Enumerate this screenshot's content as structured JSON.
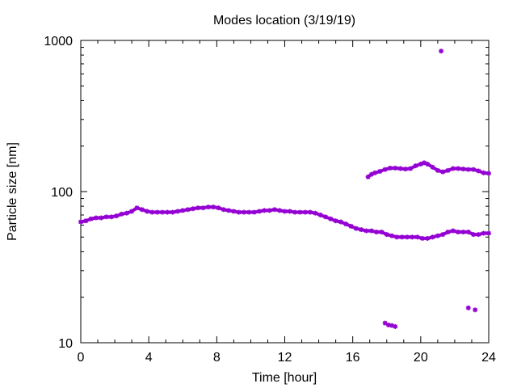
{
  "chart_data": {
    "type": "scatter",
    "title": "Modes location (3/19/19)",
    "xlabel": "Time [hour]",
    "ylabel": "Particle size [nm]",
    "xlim": [
      0,
      24
    ],
    "ylim": [
      10,
      1000
    ],
    "y_scale": "log",
    "x_ticks": [
      "0",
      "4",
      "8",
      "12",
      "16",
      "20",
      "24"
    ],
    "y_ticks": [
      "10",
      "100",
      "1000"
    ],
    "marker_color": "#9400d3",
    "grid": false,
    "legend": "none",
    "series": [
      {
        "points": [
          [
            0.0,
            63
          ],
          [
            0.3,
            64
          ],
          [
            0.6,
            66
          ],
          [
            0.9,
            67
          ],
          [
            1.2,
            67
          ],
          [
            1.5,
            68
          ],
          [
            1.8,
            68
          ],
          [
            2.1,
            69
          ],
          [
            2.4,
            71
          ],
          [
            2.7,
            72
          ],
          [
            3.0,
            74
          ],
          [
            3.3,
            78
          ],
          [
            3.6,
            76
          ],
          [
            3.9,
            74
          ],
          [
            4.2,
            73
          ],
          [
            4.5,
            73
          ],
          [
            4.8,
            73
          ],
          [
            5.1,
            73
          ],
          [
            5.4,
            73
          ],
          [
            5.7,
            74
          ],
          [
            6.0,
            75
          ],
          [
            6.3,
            76
          ],
          [
            6.6,
            77
          ],
          [
            6.9,
            78
          ],
          [
            7.2,
            78
          ],
          [
            7.5,
            79
          ],
          [
            7.8,
            79
          ],
          [
            8.1,
            78
          ],
          [
            8.4,
            76
          ],
          [
            8.7,
            75
          ],
          [
            9.0,
            74
          ],
          [
            9.3,
            73
          ],
          [
            9.6,
            73
          ],
          [
            9.9,
            73
          ],
          [
            10.2,
            73
          ],
          [
            10.5,
            74
          ],
          [
            10.8,
            75
          ],
          [
            11.1,
            75
          ],
          [
            11.4,
            76
          ],
          [
            11.7,
            75
          ],
          [
            12.0,
            74
          ],
          [
            12.3,
            74
          ],
          [
            12.6,
            73
          ],
          [
            12.9,
            73
          ],
          [
            13.2,
            73
          ],
          [
            13.5,
            73
          ],
          [
            13.8,
            72
          ],
          [
            14.1,
            70
          ],
          [
            14.4,
            68
          ],
          [
            14.7,
            66
          ],
          [
            15.0,
            64
          ],
          [
            15.3,
            63
          ],
          [
            15.6,
            61
          ],
          [
            15.9,
            59
          ],
          [
            16.2,
            57
          ],
          [
            16.5,
            56
          ],
          [
            16.8,
            55
          ],
          [
            17.1,
            55
          ],
          [
            17.4,
            54
          ],
          [
            17.7,
            54
          ],
          [
            18.0,
            52
          ],
          [
            18.3,
            51
          ],
          [
            18.6,
            50
          ],
          [
            18.9,
            50
          ],
          [
            19.2,
            50
          ],
          [
            19.5,
            50
          ],
          [
            19.8,
            50
          ],
          [
            20.1,
            49
          ],
          [
            20.4,
            49
          ],
          [
            20.7,
            50
          ],
          [
            21.0,
            51
          ],
          [
            21.3,
            52
          ],
          [
            21.6,
            54
          ],
          [
            21.9,
            55
          ],
          [
            22.2,
            54
          ],
          [
            22.5,
            54
          ],
          [
            22.8,
            54
          ],
          [
            23.1,
            52
          ],
          [
            23.4,
            52
          ],
          [
            23.7,
            53
          ],
          [
            24.0,
            53
          ]
        ]
      },
      {
        "points": [
          [
            16.9,
            125
          ],
          [
            17.1,
            130
          ],
          [
            17.3,
            133
          ],
          [
            17.6,
            136
          ],
          [
            17.9,
            140
          ],
          [
            18.2,
            143
          ],
          [
            18.5,
            143
          ],
          [
            18.8,
            142
          ],
          [
            19.1,
            141
          ],
          [
            19.4,
            142
          ],
          [
            19.7,
            148
          ],
          [
            20.0,
            152
          ],
          [
            20.2,
            155
          ],
          [
            20.4,
            152
          ],
          [
            20.7,
            145
          ],
          [
            21.0,
            138
          ],
          [
            21.3,
            135
          ],
          [
            21.6,
            138
          ],
          [
            21.9,
            142
          ],
          [
            22.2,
            142
          ],
          [
            22.5,
            141
          ],
          [
            22.8,
            140
          ],
          [
            23.1,
            140
          ],
          [
            23.4,
            137
          ],
          [
            23.7,
            133
          ],
          [
            24.0,
            132
          ]
        ]
      },
      {
        "points": [
          [
            17.9,
            13.5
          ],
          [
            18.1,
            13.1
          ],
          [
            18.3,
            13.0
          ],
          [
            18.5,
            12.8
          ],
          [
            21.2,
            850
          ],
          [
            22.8,
            17
          ],
          [
            23.2,
            16.5
          ]
        ]
      }
    ]
  }
}
